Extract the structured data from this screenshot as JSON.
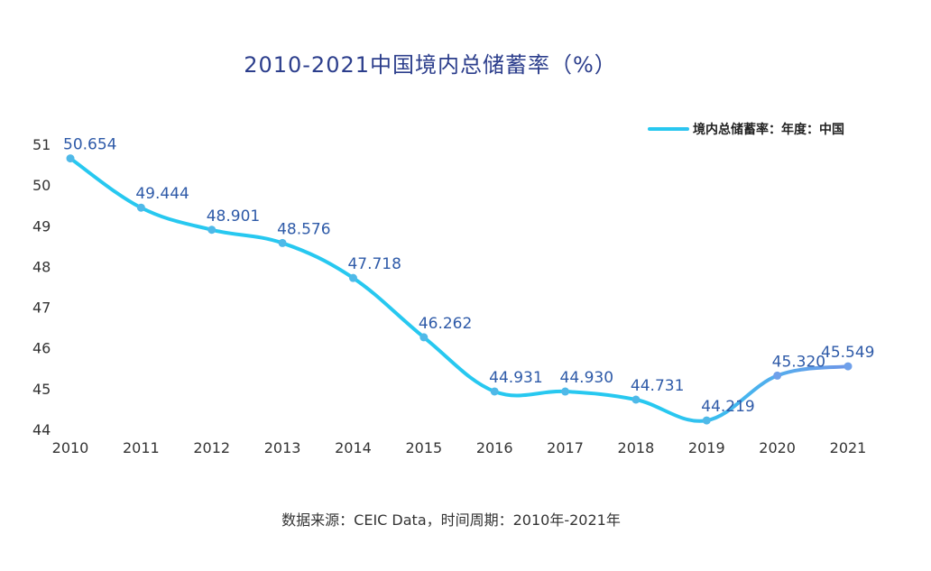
{
  "chart_data": {
    "type": "line",
    "title": "2010-2021中国境内总储蓄率（%）",
    "x": [
      "2010",
      "2011",
      "2012",
      "2013",
      "2014",
      "2015",
      "2016",
      "2017",
      "2018",
      "2019",
      "2020",
      "2021"
    ],
    "series": [
      {
        "name": "境内总储蓄率：年度：中国",
        "values": [
          50.654,
          49.444,
          48.901,
          48.576,
          47.718,
          46.262,
          44.931,
          44.93,
          44.731,
          44.219,
          45.32,
          45.549
        ],
        "labels": [
          "50.654",
          "49.444",
          "48.901",
          "48.576",
          "47.718",
          "46.262",
          "44.931",
          "44.930",
          "44.731",
          "44.219",
          "45.320",
          "45.549"
        ]
      }
    ],
    "yticks": [
      "44",
      "45",
      "46",
      "47",
      "48",
      "49",
      "50",
      "51"
    ],
    "ylim": [
      44,
      51
    ],
    "legend_position": "top-right",
    "grid": false,
    "colors": {
      "line_start": "#27c8f0",
      "line_end": "#8a7be0",
      "point": "#4fb9e8",
      "label": "#2e5aa8"
    }
  },
  "source": "数据来源：CEIC Data，时间周期：2010年-2021年"
}
